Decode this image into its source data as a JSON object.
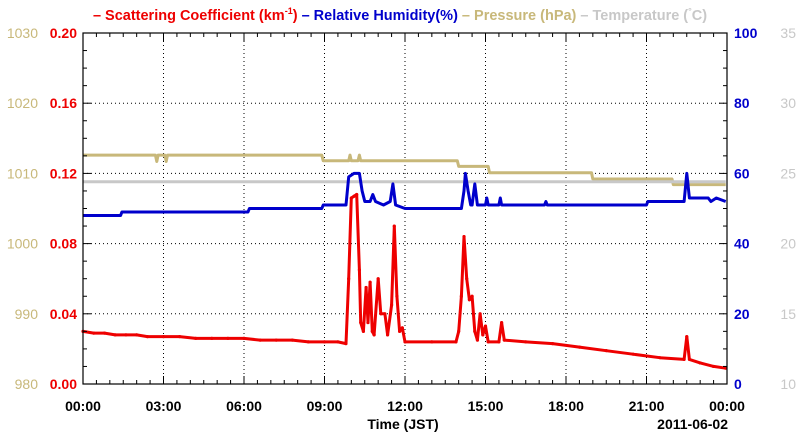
{
  "chart_data": {
    "type": "line",
    "legend": {
      "placement": "top",
      "items": [
        {
          "dash": "–",
          "label": "Scattering Coefficient (km",
          "sup": "-1",
          "tail": ")",
          "color": "#ee0000"
        },
        {
          "dash": "–",
          "label": "Relative Humidity(%)",
          "sup": "",
          "tail": "",
          "color": "#0000cc"
        },
        {
          "dash": "–",
          "label": "Pressure (hPa)",
          "sup": "",
          "tail": "",
          "color": "#c8b87a"
        },
        {
          "dash": "–",
          "label": "Temperature (",
          "sup": "°",
          "tail": "C)",
          "color": "#c8c8c8"
        }
      ]
    },
    "xlabel": "Time (JST)",
    "date_label": "2011-06-02",
    "grid": true,
    "x_range_hours": [
      0,
      24
    ],
    "x_ticks": [
      {
        "hour": 0,
        "label": "00:00"
      },
      {
        "hour": 3,
        "label": "03:00"
      },
      {
        "hour": 6,
        "label": "06:00"
      },
      {
        "hour": 9,
        "label": "09:00"
      },
      {
        "hour": 12,
        "label": "12:00"
      },
      {
        "hour": 15,
        "label": "15:00"
      },
      {
        "hour": 18,
        "label": "18:00"
      },
      {
        "hour": 21,
        "label": "21:00"
      },
      {
        "hour": 24,
        "label": "00:00"
      }
    ],
    "axes": {
      "pressure": {
        "side": "outer-left",
        "range": [
          980,
          1030
        ],
        "ticks": [
          "980",
          "990",
          "1000",
          "1010",
          "1020",
          "1030"
        ],
        "color": "#c8b87a"
      },
      "scattering": {
        "side": "left",
        "range": [
          0,
          0.2
        ],
        "ticks": [
          "0.00",
          "0.04",
          "0.08",
          "0.12",
          "0.16",
          "0.20"
        ],
        "color": "#ee0000"
      },
      "humidity": {
        "side": "right",
        "range": [
          0,
          100
        ],
        "ticks": [
          "0",
          "20",
          "40",
          "60",
          "80",
          "100"
        ],
        "color": "#0000cc"
      },
      "temperature": {
        "side": "outer-right",
        "range": [
          10,
          35
        ],
        "ticks": [
          "10",
          "15",
          "20",
          "25",
          "30",
          "35"
        ],
        "color": "#c8c8c8"
      }
    },
    "series": [
      {
        "name": "Pressure (hPa)",
        "axis": "pressure",
        "color": "#c8b87a",
        "points": [
          [
            0,
            1012.6
          ],
          [
            2.7,
            1012.6
          ],
          [
            2.75,
            1011.7
          ],
          [
            2.8,
            1012.6
          ],
          [
            3.05,
            1012.6
          ],
          [
            3.1,
            1011.7
          ],
          [
            3.15,
            1012.6
          ],
          [
            8.9,
            1012.6
          ],
          [
            8.95,
            1011.8
          ],
          [
            9.9,
            1011.8
          ],
          [
            9.95,
            1012.6
          ],
          [
            10.0,
            1011.8
          ],
          [
            10.25,
            1011.8
          ],
          [
            10.3,
            1012.6
          ],
          [
            10.35,
            1011.8
          ],
          [
            13.95,
            1011.8
          ],
          [
            14.0,
            1011.0
          ],
          [
            15.1,
            1011.0
          ],
          [
            15.15,
            1010.1
          ],
          [
            18.95,
            1010.1
          ],
          [
            19.0,
            1009.2
          ],
          [
            21.95,
            1009.2
          ],
          [
            22.0,
            1008.4
          ],
          [
            23.95,
            1008.4
          ]
        ]
      },
      {
        "name": "Temperature (°C)",
        "axis": "temperature",
        "color": "#c8c8c8",
        "points": [
          [
            0,
            24.4
          ],
          [
            23.95,
            24.4
          ]
        ]
      },
      {
        "name": "Relative Humidity(%)",
        "axis": "humidity",
        "color": "#0000cc",
        "points": [
          [
            0,
            48.0
          ],
          [
            1.4,
            48.0
          ],
          [
            1.45,
            49.0
          ],
          [
            6.15,
            49.0
          ],
          [
            6.2,
            50.0
          ],
          [
            8.9,
            50.0
          ],
          [
            8.95,
            51.0
          ],
          [
            9.8,
            51.0
          ],
          [
            9.9,
            59.0
          ],
          [
            10.1,
            60.0
          ],
          [
            10.3,
            60.0
          ],
          [
            10.4,
            55.0
          ],
          [
            10.5,
            52.0
          ],
          [
            10.7,
            52.0
          ],
          [
            10.8,
            54.0
          ],
          [
            10.9,
            52.0
          ],
          [
            11.2,
            51.0
          ],
          [
            11.45,
            52.0
          ],
          [
            11.55,
            57.0
          ],
          [
            11.65,
            51.0
          ],
          [
            12.0,
            50.0
          ],
          [
            14.1,
            50.0
          ],
          [
            14.2,
            55.0
          ],
          [
            14.25,
            60.0
          ],
          [
            14.35,
            55.0
          ],
          [
            14.45,
            51.0
          ],
          [
            14.5,
            51.0
          ],
          [
            14.6,
            57.0
          ],
          [
            14.7,
            51.0
          ],
          [
            15.0,
            51.0
          ],
          [
            15.05,
            53.0
          ],
          [
            15.1,
            51.0
          ],
          [
            15.5,
            51.0
          ],
          [
            15.55,
            53.0
          ],
          [
            15.6,
            51.0
          ],
          [
            17.2,
            51.0
          ],
          [
            17.25,
            52.0
          ],
          [
            17.3,
            51.0
          ],
          [
            21.0,
            51.0
          ],
          [
            21.05,
            52.0
          ],
          [
            22.4,
            52.0
          ],
          [
            22.5,
            60.0
          ],
          [
            22.6,
            53.0
          ],
          [
            23.3,
            53.0
          ],
          [
            23.4,
            52.0
          ],
          [
            23.6,
            53.0
          ],
          [
            23.95,
            52.0
          ]
        ]
      },
      {
        "name": "Scattering Coefficient (km-1)",
        "axis": "scattering",
        "color": "#ee0000",
        "points": [
          [
            0,
            0.03
          ],
          [
            0.4,
            0.029
          ],
          [
            0.8,
            0.029
          ],
          [
            1.2,
            0.028
          ],
          [
            1.6,
            0.028
          ],
          [
            2.0,
            0.028
          ],
          [
            2.4,
            0.027
          ],
          [
            3.0,
            0.027
          ],
          [
            3.6,
            0.027
          ],
          [
            4.2,
            0.026
          ],
          [
            4.8,
            0.026
          ],
          [
            5.4,
            0.026
          ],
          [
            6.0,
            0.026
          ],
          [
            6.6,
            0.025
          ],
          [
            7.2,
            0.025
          ],
          [
            7.8,
            0.025
          ],
          [
            8.4,
            0.024
          ],
          [
            9.0,
            0.024
          ],
          [
            9.5,
            0.024
          ],
          [
            9.8,
            0.023
          ],
          [
            9.9,
            0.06
          ],
          [
            10.0,
            0.106
          ],
          [
            10.1,
            0.107
          ],
          [
            10.2,
            0.108
          ],
          [
            10.3,
            0.065
          ],
          [
            10.35,
            0.035
          ],
          [
            10.45,
            0.03
          ],
          [
            10.55,
            0.055
          ],
          [
            10.62,
            0.035
          ],
          [
            10.7,
            0.058
          ],
          [
            10.78,
            0.03
          ],
          [
            10.85,
            0.028
          ],
          [
            11.0,
            0.06
          ],
          [
            11.1,
            0.04
          ],
          [
            11.25,
            0.04
          ],
          [
            11.35,
            0.028
          ],
          [
            11.5,
            0.045
          ],
          [
            11.6,
            0.09
          ],
          [
            11.7,
            0.05
          ],
          [
            11.8,
            0.03
          ],
          [
            11.9,
            0.032
          ],
          [
            12.0,
            0.024
          ],
          [
            13.0,
            0.024
          ],
          [
            13.9,
            0.024
          ],
          [
            14.0,
            0.03
          ],
          [
            14.1,
            0.05
          ],
          [
            14.2,
            0.084
          ],
          [
            14.3,
            0.06
          ],
          [
            14.4,
            0.048
          ],
          [
            14.5,
            0.05
          ],
          [
            14.6,
            0.03
          ],
          [
            14.7,
            0.025
          ],
          [
            14.8,
            0.04
          ],
          [
            14.9,
            0.028
          ],
          [
            15.0,
            0.033
          ],
          [
            15.1,
            0.024
          ],
          [
            15.5,
            0.024
          ],
          [
            15.6,
            0.035
          ],
          [
            15.7,
            0.025
          ],
          [
            16.5,
            0.024
          ],
          [
            17.5,
            0.023
          ],
          [
            18.5,
            0.021
          ],
          [
            19.5,
            0.019
          ],
          [
            20.5,
            0.017
          ],
          [
            21.5,
            0.015
          ],
          [
            22.4,
            0.014
          ],
          [
            22.5,
            0.027
          ],
          [
            22.6,
            0.014
          ],
          [
            23.0,
            0.012
          ],
          [
            23.5,
            0.01
          ],
          [
            23.95,
            0.009
          ]
        ]
      }
    ]
  }
}
